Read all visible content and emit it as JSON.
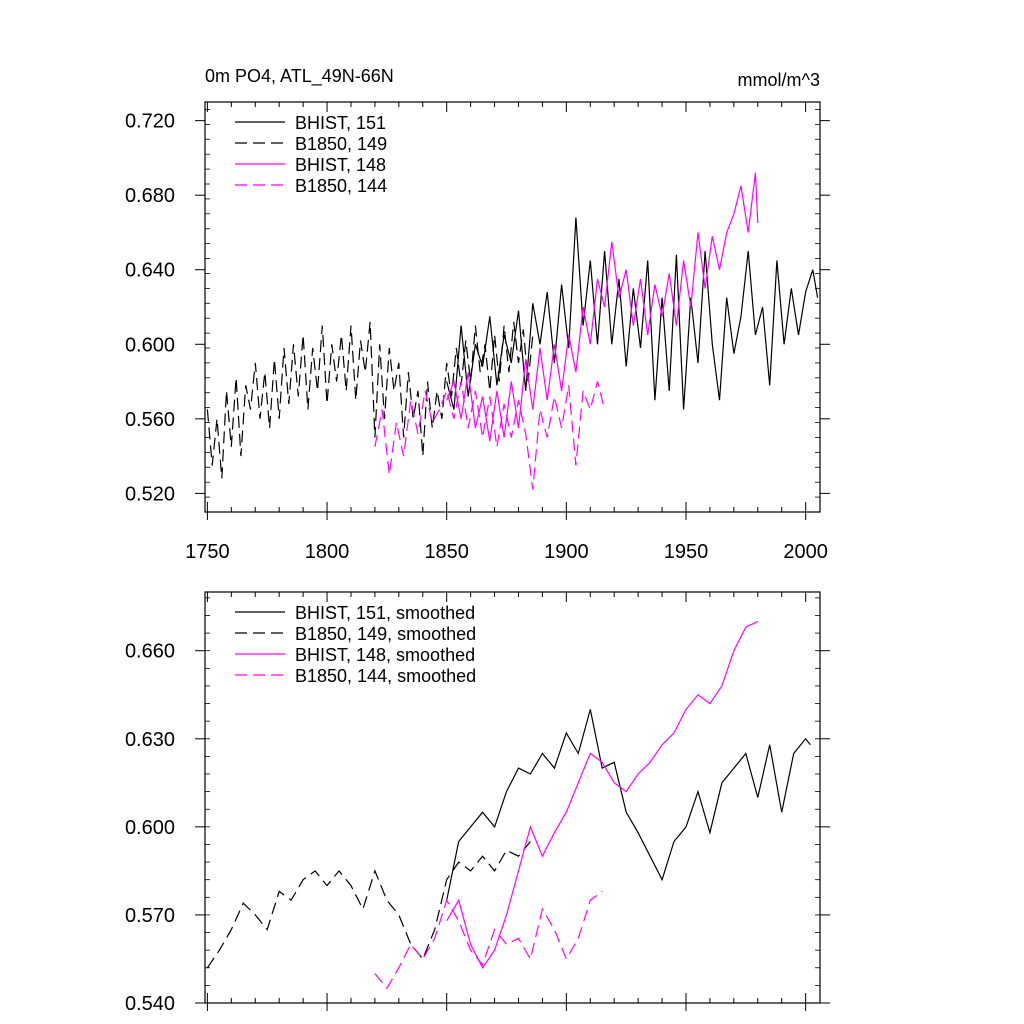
{
  "chart_data": [
    {
      "type": "line",
      "title": "0m PO4, ATL_49N-66N",
      "units": "mmol/m^3",
      "xlim": [
        1749,
        2006
      ],
      "ylim": [
        0.51,
        0.73
      ],
      "yticks": [
        "0.520",
        "0.560",
        "0.600",
        "0.640",
        "0.680",
        "0.720"
      ],
      "xticks": [
        "1750",
        "1800",
        "1850",
        "1900",
        "1950",
        "2000"
      ],
      "legend_position": "top-left",
      "series": [
        {
          "name": "BHIST, 151",
          "color": "#000000",
          "dash": "solid",
          "x": [
            1850,
            1853,
            1856,
            1859,
            1862,
            1865,
            1868,
            1871,
            1874,
            1877,
            1880,
            1883,
            1886,
            1889,
            1892,
            1895,
            1898,
            1901,
            1904,
            1907,
            1910,
            1913,
            1916,
            1919,
            1922,
            1925,
            1928,
            1931,
            1934,
            1937,
            1940,
            1943,
            1946,
            1949,
            1952,
            1955,
            1958,
            1961,
            1964,
            1967,
            1970,
            1973,
            1976,
            1979,
            1982,
            1985,
            1988,
            1991,
            1994,
            1997,
            2000,
            2003,
            2005
          ],
          "values": [
            0.58,
            0.565,
            0.61,
            0.572,
            0.6,
            0.588,
            0.615,
            0.578,
            0.605,
            0.59,
            0.618,
            0.575,
            0.622,
            0.6,
            0.628,
            0.59,
            0.632,
            0.598,
            0.668,
            0.61,
            0.645,
            0.6,
            0.65,
            0.6,
            0.635,
            0.588,
            0.63,
            0.598,
            0.645,
            0.57,
            0.625,
            0.575,
            0.648,
            0.565,
            0.625,
            0.59,
            0.65,
            0.6,
            0.57,
            0.625,
            0.595,
            0.615,
            0.65,
            0.605,
            0.62,
            0.578,
            0.645,
            0.6,
            0.63,
            0.605,
            0.628,
            0.64,
            0.625
          ]
        },
        {
          "name": "B1850, 149",
          "color": "#000000",
          "dash": "dashed",
          "x": [
            1750,
            1752,
            1754,
            1756,
            1758,
            1760,
            1762,
            1764,
            1766,
            1768,
            1770,
            1772,
            1774,
            1776,
            1778,
            1780,
            1782,
            1784,
            1786,
            1788,
            1790,
            1792,
            1794,
            1796,
            1798,
            1800,
            1802,
            1804,
            1806,
            1808,
            1810,
            1812,
            1814,
            1816,
            1818,
            1820,
            1822,
            1824,
            1826,
            1828,
            1830,
            1832,
            1834,
            1836,
            1838,
            1840,
            1842,
            1844,
            1846,
            1848,
            1850,
            1852,
            1854,
            1856,
            1858,
            1860,
            1862,
            1864,
            1866,
            1868,
            1870,
            1872,
            1874,
            1876,
            1878,
            1880,
            1882,
            1884,
            1886
          ],
          "values": [
            0.565,
            0.535,
            0.56,
            0.528,
            0.575,
            0.545,
            0.582,
            0.54,
            0.578,
            0.565,
            0.59,
            0.56,
            0.585,
            0.555,
            0.592,
            0.56,
            0.598,
            0.568,
            0.6,
            0.572,
            0.605,
            0.565,
            0.598,
            0.575,
            0.61,
            0.568,
            0.6,
            0.58,
            0.605,
            0.575,
            0.61,
            0.57,
            0.602,
            0.585,
            0.612,
            0.55,
            0.6,
            0.56,
            0.598,
            0.575,
            0.59,
            0.55,
            0.585,
            0.56,
            0.575,
            0.54,
            0.58,
            0.555,
            0.575,
            0.56,
            0.59,
            0.572,
            0.598,
            0.578,
            0.602,
            0.58,
            0.61,
            0.585,
            0.6,
            0.575,
            0.605,
            0.58,
            0.61,
            0.585,
            0.612,
            0.59,
            0.608,
            0.58,
            0.605
          ]
        },
        {
          "name": "BHIST, 148",
          "color": "#ff00ff",
          "dash": "solid",
          "x": [
            1850,
            1853,
            1856,
            1859,
            1862,
            1865,
            1868,
            1871,
            1874,
            1877,
            1880,
            1883,
            1886,
            1889,
            1892,
            1895,
            1898,
            1901,
            1904,
            1907,
            1910,
            1913,
            1916,
            1919,
            1922,
            1925,
            1928,
            1931,
            1934,
            1937,
            1940,
            1943,
            1946,
            1949,
            1952,
            1955,
            1958,
            1961,
            1964,
            1967,
            1970,
            1973,
            1976,
            1979,
            1980
          ],
          "values": [
            0.57,
            0.58,
            0.56,
            0.585,
            0.555,
            0.572,
            0.548,
            0.575,
            0.55,
            0.58,
            0.555,
            0.592,
            0.565,
            0.598,
            0.57,
            0.6,
            0.575,
            0.605,
            0.585,
            0.62,
            0.6,
            0.635,
            0.62,
            0.655,
            0.625,
            0.64,
            0.61,
            0.635,
            0.605,
            0.632,
            0.615,
            0.638,
            0.61,
            0.645,
            0.62,
            0.66,
            0.63,
            0.658,
            0.64,
            0.66,
            0.67,
            0.685,
            0.66,
            0.692,
            0.665
          ]
        },
        {
          "name": "B1850, 144",
          "color": "#ff00ff",
          "dash": "dashed",
          "x": [
            1820,
            1823,
            1826,
            1829,
            1832,
            1835,
            1838,
            1841,
            1844,
            1847,
            1850,
            1853,
            1856,
            1859,
            1862,
            1865,
            1868,
            1871,
            1874,
            1877,
            1880,
            1883,
            1886,
            1889,
            1892,
            1895,
            1898,
            1901,
            1904,
            1907,
            1910,
            1913,
            1916
          ],
          "values": [
            0.545,
            0.565,
            0.53,
            0.558,
            0.54,
            0.57,
            0.552,
            0.575,
            0.558,
            0.565,
            0.575,
            0.56,
            0.58,
            0.555,
            0.575,
            0.55,
            0.572,
            0.545,
            0.568,
            0.55,
            0.57,
            0.552,
            0.522,
            0.565,
            0.55,
            0.572,
            0.555,
            0.578,
            0.535,
            0.575,
            0.565,
            0.58,
            0.565
          ]
        }
      ]
    },
    {
      "type": "line",
      "xlim": [
        1749,
        2006
      ],
      "ylim": [
        0.54,
        0.68
      ],
      "yticks": [
        "0.540",
        "0.570",
        "0.600",
        "0.630",
        "0.660"
      ],
      "legend_position": "top-left",
      "series": [
        {
          "name": "BHIST, 151, smoothed",
          "color": "#000000",
          "dash": "solid",
          "x": [
            1850,
            1855,
            1860,
            1865,
            1870,
            1875,
            1880,
            1885,
            1890,
            1895,
            1900,
            1905,
            1910,
            1915,
            1920,
            1925,
            1930,
            1935,
            1940,
            1945,
            1950,
            1955,
            1960,
            1965,
            1970,
            1975,
            1980,
            1985,
            1990,
            1995,
            2000,
            2002
          ],
          "values": [
            0.575,
            0.595,
            0.6,
            0.605,
            0.6,
            0.612,
            0.62,
            0.618,
            0.625,
            0.62,
            0.632,
            0.625,
            0.64,
            0.62,
            0.622,
            0.605,
            0.598,
            0.59,
            0.582,
            0.595,
            0.6,
            0.612,
            0.598,
            0.615,
            0.62,
            0.625,
            0.61,
            0.628,
            0.605,
            0.625,
            0.63,
            0.628
          ]
        },
        {
          "name": "B1850, 149, smoothed",
          "color": "#000000",
          "dash": "dashed",
          "x": [
            1750,
            1755,
            1760,
            1765,
            1770,
            1775,
            1780,
            1785,
            1790,
            1795,
            1800,
            1805,
            1810,
            1815,
            1820,
            1825,
            1830,
            1835,
            1840,
            1845,
            1850,
            1855,
            1860,
            1865,
            1870,
            1875,
            1880,
            1885
          ],
          "values": [
            0.552,
            0.558,
            0.565,
            0.574,
            0.57,
            0.565,
            0.578,
            0.575,
            0.582,
            0.585,
            0.58,
            0.585,
            0.58,
            0.572,
            0.585,
            0.575,
            0.57,
            0.56,
            0.555,
            0.565,
            0.582,
            0.588,
            0.585,
            0.59,
            0.585,
            0.592,
            0.59,
            0.595
          ]
        },
        {
          "name": "BHIST, 148, smoothed",
          "color": "#ff00ff",
          "dash": "solid",
          "x": [
            1850,
            1855,
            1860,
            1865,
            1870,
            1875,
            1880,
            1885,
            1890,
            1895,
            1900,
            1905,
            1910,
            1915,
            1920,
            1925,
            1930,
            1935,
            1940,
            1945,
            1950,
            1955,
            1960,
            1965,
            1970,
            1975,
            1980
          ],
          "values": [
            0.568,
            0.575,
            0.56,
            0.552,
            0.558,
            0.57,
            0.585,
            0.6,
            0.59,
            0.598,
            0.605,
            0.615,
            0.625,
            0.622,
            0.615,
            0.612,
            0.618,
            0.622,
            0.628,
            0.632,
            0.64,
            0.645,
            0.642,
            0.648,
            0.66,
            0.668,
            0.67
          ]
        },
        {
          "name": "B1850, 144, smoothed",
          "color": "#ff00ff",
          "dash": "dashed",
          "x": [
            1820,
            1825,
            1830,
            1835,
            1840,
            1845,
            1850,
            1855,
            1860,
            1865,
            1870,
            1875,
            1880,
            1885,
            1890,
            1895,
            1900,
            1905,
            1910,
            1915
          ],
          "values": [
            0.55,
            0.545,
            0.552,
            0.56,
            0.555,
            0.562,
            0.575,
            0.568,
            0.558,
            0.553,
            0.565,
            0.56,
            0.562,
            0.555,
            0.572,
            0.565,
            0.555,
            0.562,
            0.575,
            0.578
          ]
        }
      ]
    }
  ]
}
